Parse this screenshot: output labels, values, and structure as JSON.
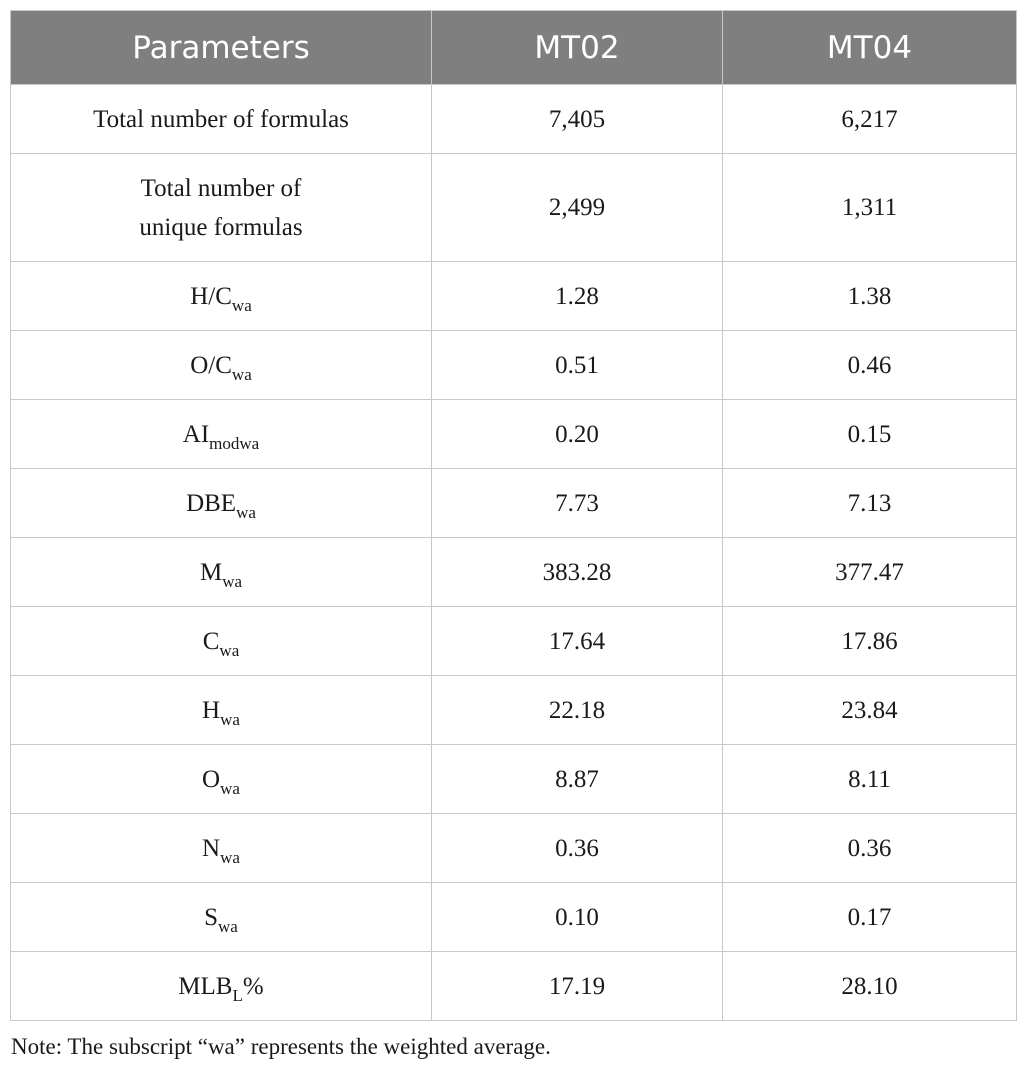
{
  "table": {
    "headers": [
      "Parameters",
      "MT02",
      "MT04"
    ],
    "rows": [
      {
        "param": {
          "main": "Total number of formulas",
          "sub": ""
        },
        "mt02": "7,405",
        "mt04": "6,217"
      },
      {
        "param": {
          "main": "Total number of unique formulas",
          "sub": "",
          "line1": "Total number of",
          "line2": "unique formulas"
        },
        "mt02": "2,499",
        "mt04": "1,311"
      },
      {
        "param": {
          "main": "H/C",
          "sub": "wa"
        },
        "mt02": "1.28",
        "mt04": "1.38"
      },
      {
        "param": {
          "main": "O/C",
          "sub": "wa"
        },
        "mt02": "0.51",
        "mt04": "0.46"
      },
      {
        "param": {
          "main": "AI",
          "sub": "modwa"
        },
        "mt02": "0.20",
        "mt04": "0.15"
      },
      {
        "param": {
          "main": "DBE",
          "sub": "wa"
        },
        "mt02": "7.73",
        "mt04": "7.13"
      },
      {
        "param": {
          "main": "M",
          "sub": "wa"
        },
        "mt02": "383.28",
        "mt04": "377.47"
      },
      {
        "param": {
          "main": "C",
          "sub": "wa"
        },
        "mt02": "17.64",
        "mt04": "17.86"
      },
      {
        "param": {
          "main": "H",
          "sub": "wa"
        },
        "mt02": "22.18",
        "mt04": "23.84"
      },
      {
        "param": {
          "main": "O",
          "sub": "wa"
        },
        "mt02": "8.87",
        "mt04": "8.11"
      },
      {
        "param": {
          "main": "N",
          "sub": "wa"
        },
        "mt02": "0.36",
        "mt04": "0.36"
      },
      {
        "param": {
          "main": "S",
          "sub": "wa"
        },
        "mt02": "0.10",
        "mt04": "0.17"
      },
      {
        "param": {
          "main": "MLB",
          "sub": "L",
          "suffix": "%"
        },
        "mt02": "17.19",
        "mt04": "28.10"
      }
    ]
  },
  "note": "Note: The subscript “wa” represents the weighted average.",
  "colors": {
    "header_bg": "#7f7f7f",
    "header_text": "#ffffff",
    "border": "#c8c8c8"
  }
}
